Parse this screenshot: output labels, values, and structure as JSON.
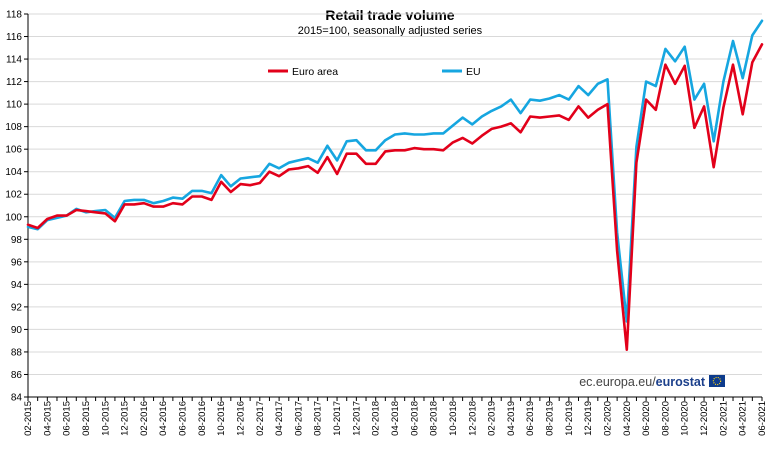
{
  "chart_data": {
    "type": "line",
    "title": "Retail trade volume",
    "subtitle": "2015=100, seasonally adjusted series",
    "x_unit": "month",
    "x": [
      "02-2015",
      "03-2015",
      "04-2015",
      "05-2015",
      "06-2015",
      "07-2015",
      "08-2015",
      "09-2015",
      "10-2015",
      "11-2015",
      "12-2015",
      "01-2016",
      "02-2016",
      "03-2016",
      "04-2016",
      "05-2016",
      "06-2016",
      "07-2016",
      "08-2016",
      "09-2016",
      "10-2016",
      "11-2016",
      "12-2016",
      "01-2017",
      "02-2017",
      "03-2017",
      "04-2017",
      "05-2017",
      "06-2017",
      "07-2017",
      "08-2017",
      "09-2017",
      "10-2017",
      "11-2017",
      "12-2017",
      "01-2018",
      "02-2018",
      "03-2018",
      "04-2018",
      "05-2018",
      "06-2018",
      "07-2018",
      "08-2018",
      "09-2018",
      "10-2018",
      "11-2018",
      "12-2018",
      "01-2019",
      "02-2019",
      "03-2019",
      "04-2019",
      "05-2019",
      "06-2019",
      "07-2019",
      "08-2019",
      "09-2019",
      "10-2019",
      "11-2019",
      "12-2019",
      "01-2020",
      "02-2020",
      "03-2020",
      "04-2020",
      "05-2020",
      "06-2020",
      "07-2020",
      "08-2020",
      "09-2020",
      "10-2020",
      "11-2020",
      "12-2020",
      "01-2021",
      "02-2021",
      "03-2021",
      "04-2021",
      "05-2021",
      "06-2021"
    ],
    "x_tick_labels": [
      "02-2015",
      "04-2015",
      "06-2015",
      "08-2015",
      "10-2015",
      "12-2015",
      "02-2016",
      "04-2016",
      "06-2016",
      "08-2016",
      "10-2016",
      "12-2016",
      "02-2017",
      "04-2017",
      "06-2017",
      "08-2017",
      "10-2017",
      "12-2017",
      "02-2018",
      "04-2018",
      "06-2018",
      "08-2018",
      "10-2018",
      "12-2018",
      "02-2019",
      "04-2019",
      "06-2019",
      "08-2019",
      "10-2019",
      "12-2019",
      "02-2020",
      "04-2020",
      "06-2020",
      "08-2020",
      "10-2020",
      "12-2020",
      "02-2021",
      "04-2021",
      "06-2021"
    ],
    "series": [
      {
        "name": "Euro area",
        "color": "#e2001a",
        "values": [
          99.3,
          99.0,
          99.8,
          100.1,
          100.1,
          100.6,
          100.5,
          100.4,
          100.3,
          99.6,
          101.1,
          101.1,
          101.2,
          100.9,
          100.9,
          101.2,
          101.1,
          101.8,
          101.8,
          101.5,
          103.1,
          102.2,
          102.9,
          102.8,
          103.0,
          104.0,
          103.6,
          104.2,
          104.3,
          104.5,
          103.9,
          105.3,
          103.8,
          105.6,
          105.6,
          104.7,
          104.7,
          105.8,
          105.9,
          105.9,
          106.1,
          106.0,
          106.0,
          105.9,
          106.6,
          107.0,
          106.5,
          107.2,
          107.8,
          108.0,
          108.3,
          107.5,
          108.9,
          108.8,
          108.9,
          109.0,
          108.6,
          109.8,
          108.8,
          109.5,
          110.0,
          97.0,
          88.2,
          104.8,
          110.4,
          109.5,
          113.5,
          111.8,
          113.4,
          107.9,
          109.8,
          104.4,
          109.7,
          113.5,
          109.1,
          113.7,
          115.3
        ]
      },
      {
        "name": "EU",
        "color": "#16a6e0",
        "values": [
          99.1,
          98.9,
          99.7,
          99.9,
          100.1,
          100.7,
          100.4,
          100.5,
          100.6,
          99.9,
          101.4,
          101.5,
          101.5,
          101.2,
          101.4,
          101.7,
          101.6,
          102.3,
          102.3,
          102.1,
          103.7,
          102.7,
          103.4,
          103.5,
          103.6,
          104.7,
          104.3,
          104.8,
          105.0,
          105.2,
          104.8,
          106.3,
          105.0,
          106.7,
          106.8,
          105.9,
          105.9,
          106.8,
          107.3,
          107.4,
          107.3,
          107.3,
          107.4,
          107.4,
          108.1,
          108.8,
          108.2,
          108.9,
          109.4,
          109.8,
          110.4,
          109.2,
          110.4,
          110.3,
          110.5,
          110.8,
          110.4,
          111.6,
          110.8,
          111.8,
          112.2,
          98.6,
          90.7,
          106.2,
          112.0,
          111.6,
          114.9,
          113.8,
          115.1,
          110.4,
          111.8,
          106.7,
          112.0,
          115.6,
          112.3,
          116.1,
          117.4
        ]
      }
    ],
    "ylim": [
      84,
      118
    ],
    "y_ticks": [
      84,
      86,
      88,
      90,
      92,
      94,
      96,
      98,
      100,
      102,
      104,
      106,
      108,
      110,
      112,
      114,
      116,
      118
    ],
    "grid": true,
    "legend": "top-center",
    "xlabel": "",
    "ylabel": "",
    "source": "ec.europa.eu/",
    "source_brand": "eurostat"
  }
}
